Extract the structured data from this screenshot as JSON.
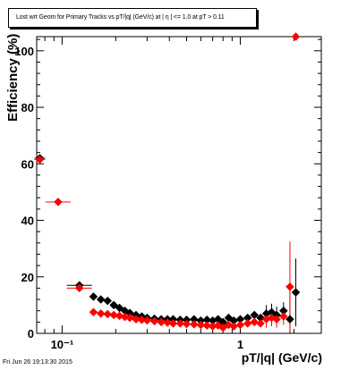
{
  "chart_data": {
    "type": "scatter",
    "title": "Lost wrt Geom for Primary Tracks vs pT/|q| (GeV/c) at | η | <= 1.0 at pT > 0.11",
    "xlabel": "pT/|q| (GeV/c)",
    "ylabel": "Efficiency (%)",
    "xscale": "log",
    "xlim": [
      0.072,
      2.85
    ],
    "ylim": [
      0,
      105
    ],
    "yticks": [
      0,
      20,
      40,
      60,
      80,
      100
    ],
    "ytick_labels": [
      "0",
      "20",
      "40",
      "60",
      "80",
      "100"
    ],
    "xtick_labels": [
      "10⁻¹",
      "1"
    ],
    "grid": false,
    "legend": "none",
    "colors": {
      "black_series": "#000000",
      "red_series": "#ff0000"
    },
    "series": [
      {
        "color": "#000000",
        "points": [
          {
            "x": 0.075,
            "y": 62
          },
          {
            "x": 0.095,
            "y": 46.5
          },
          {
            "x": 0.125,
            "y": 17
          },
          {
            "x": 0.15,
            "y": 13
          },
          {
            "x": 0.165,
            "y": 12
          },
          {
            "x": 0.18,
            "y": 11.5
          },
          {
            "x": 0.195,
            "y": 10
          },
          {
            "x": 0.21,
            "y": 9
          },
          {
            "x": 0.225,
            "y": 8
          },
          {
            "x": 0.24,
            "y": 7.2
          },
          {
            "x": 0.26,
            "y": 6.5
          },
          {
            "x": 0.28,
            "y": 6
          },
          {
            "x": 0.3,
            "y": 5.5
          },
          {
            "x": 0.33,
            "y": 5.2
          },
          {
            "x": 0.36,
            "y": 5
          },
          {
            "x": 0.39,
            "y": 5
          },
          {
            "x": 0.42,
            "y": 5
          },
          {
            "x": 0.46,
            "y": 4.8
          },
          {
            "x": 0.5,
            "y": 4.8
          },
          {
            "x": 0.55,
            "y": 5
          },
          {
            "x": 0.6,
            "y": 4.5
          },
          {
            "x": 0.65,
            "y": 4.8
          },
          {
            "x": 0.7,
            "y": 4.5
          },
          {
            "x": 0.75,
            "y": 5
          },
          {
            "x": 0.8,
            "y": 4
          },
          {
            "x": 0.86,
            "y": 5.5
          },
          {
            "x": 0.92,
            "y": 4.5
          },
          {
            "x": 1.0,
            "y": 5
          },
          {
            "x": 1.1,
            "y": 5.5
          },
          {
            "x": 1.2,
            "y": 6.5
          },
          {
            "x": 1.3,
            "y": 5.5
          },
          {
            "x": 1.4,
            "y": 7
          },
          {
            "x": 1.5,
            "y": 7.5
          },
          {
            "x": 1.6,
            "y": 6.5
          },
          {
            "x": 1.75,
            "y": 8
          },
          {
            "x": 1.9,
            "y": 5
          },
          {
            "x": 2.05,
            "y": 14.5
          }
        ]
      },
      {
        "color": "#ff0000",
        "points": [
          {
            "x": 0.075,
            "y": 61.5
          },
          {
            "x": 0.095,
            "y": 46.5
          },
          {
            "x": 0.125,
            "y": 16
          },
          {
            "x": 0.15,
            "y": 7.5
          },
          {
            "x": 0.165,
            "y": 7
          },
          {
            "x": 0.18,
            "y": 6.8
          },
          {
            "x": 0.195,
            "y": 6.5
          },
          {
            "x": 0.21,
            "y": 6.2
          },
          {
            "x": 0.225,
            "y": 5.8
          },
          {
            "x": 0.24,
            "y": 5.5
          },
          {
            "x": 0.26,
            "y": 5
          },
          {
            "x": 0.28,
            "y": 4.8
          },
          {
            "x": 0.3,
            "y": 4.6
          },
          {
            "x": 0.33,
            "y": 4.3
          },
          {
            "x": 0.36,
            "y": 4
          },
          {
            "x": 0.39,
            "y": 3.8
          },
          {
            "x": 0.42,
            "y": 3.5
          },
          {
            "x": 0.46,
            "y": 3.5
          },
          {
            "x": 0.5,
            "y": 3.3
          },
          {
            "x": 0.55,
            "y": 3.2
          },
          {
            "x": 0.6,
            "y": 3
          },
          {
            "x": 0.65,
            "y": 2.8
          },
          {
            "x": 0.7,
            "y": 2.5
          },
          {
            "x": 0.75,
            "y": 2.8
          },
          {
            "x": 0.8,
            "y": 2
          },
          {
            "x": 0.86,
            "y": 3
          },
          {
            "x": 0.92,
            "y": 2.5
          },
          {
            "x": 1.0,
            "y": 3
          },
          {
            "x": 1.1,
            "y": 3.5
          },
          {
            "x": 1.2,
            "y": 4
          },
          {
            "x": 1.3,
            "y": 3.5
          },
          {
            "x": 1.4,
            "y": 5
          },
          {
            "x": 1.5,
            "y": 5.5
          },
          {
            "x": 1.6,
            "y": 5
          },
          {
            "x": 1.75,
            "y": 6
          },
          {
            "x": 1.9,
            "y": 16.5
          },
          {
            "x": 2.05,
            "y": 105
          }
        ]
      }
    ]
  },
  "footer": {
    "datestamp": "Fri Jun 26 19:13:30 2015"
  }
}
